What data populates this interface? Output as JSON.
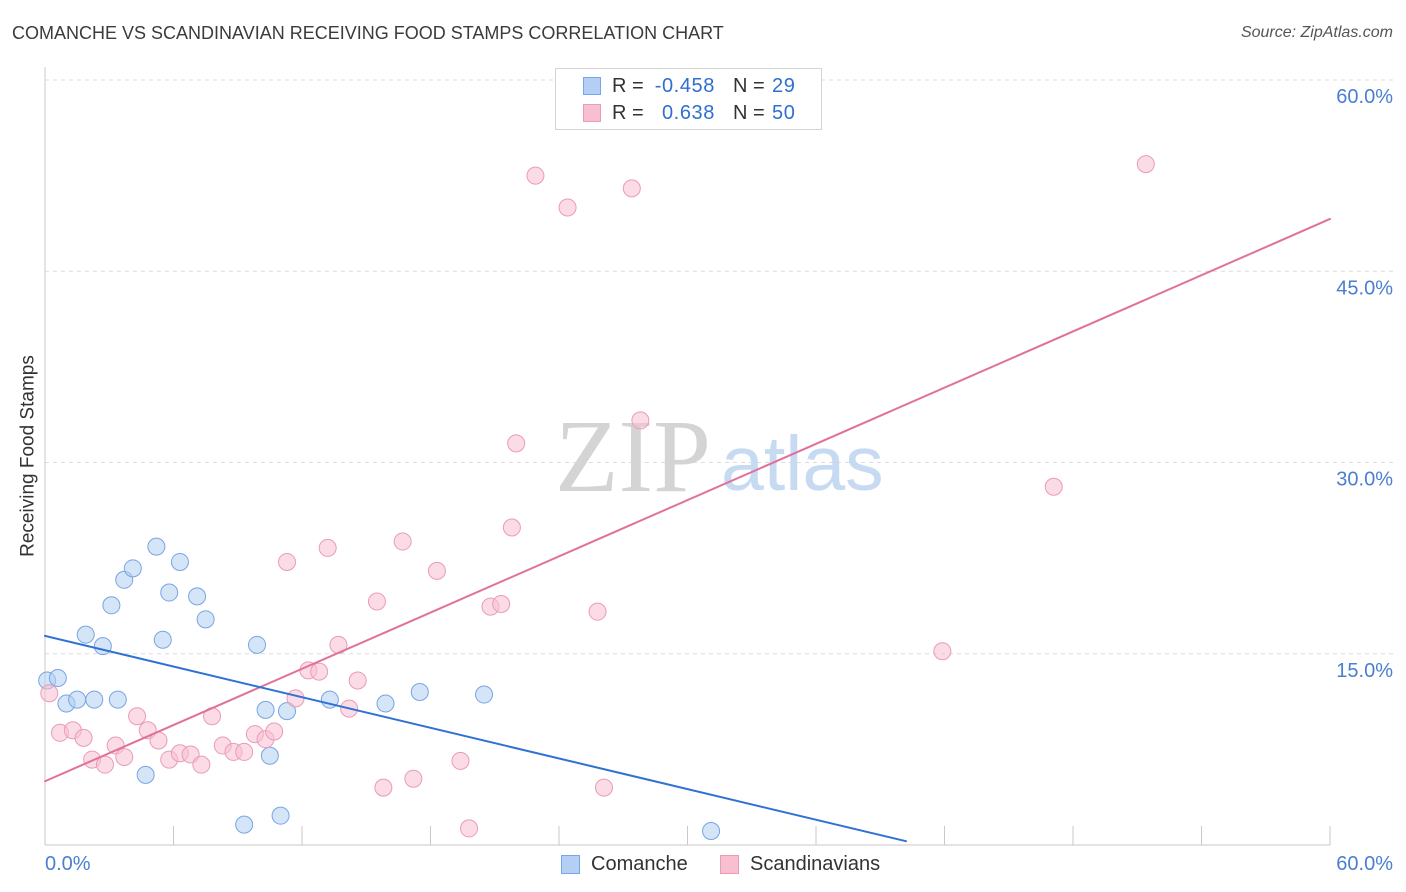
{
  "source": "Source: ZipAtlas.com",
  "watermark": {
    "part1": "ZIP",
    "part2": "atlas"
  },
  "stats_legend": {
    "rows": [
      {
        "r_label": "R =",
        "n_label": "N ="
      },
      {
        "r_label": "R =",
        "n_label": "N ="
      }
    ]
  },
  "chart_data": {
    "type": "scatter",
    "title": "COMANCHE VS SCANDINAVIAN RECEIVING FOOD STAMPS CORRELATION CHART",
    "xlabel": "",
    "ylabel": "Receiving Food Stamps",
    "xlim": [
      0,
      60
    ],
    "ylim": [
      0,
      61
    ],
    "grid": true,
    "x_axis": {
      "ticks": [
        0,
        6,
        12,
        18,
        24,
        30,
        36,
        42,
        48,
        54,
        60
      ],
      "tick_labels": [
        {
          "value": 0,
          "label": "0.0%"
        },
        {
          "value": 60,
          "label": "60.0%"
        }
      ]
    },
    "y_axis": {
      "ticks": [
        {
          "value": 60,
          "label": "60.0%"
        },
        {
          "value": 45,
          "label": "45.0%"
        },
        {
          "value": 30,
          "label": "30.0%"
        },
        {
          "value": 15,
          "label": "15.0%"
        }
      ]
    },
    "series": [
      {
        "name": "Comanche",
        "r": "-0.458",
        "n": "29",
        "fill": "#b3cff3",
        "stroke": "#78a5e3",
        "line_color": "#2f72d4",
        "trend": [
          [
            0,
            16.4
          ],
          [
            40.2,
            0.3
          ]
        ],
        "points": [
          [
            0.1,
            12.9
          ],
          [
            0.6,
            13.1
          ],
          [
            1.0,
            11.1
          ],
          [
            1.5,
            11.4
          ],
          [
            1.9,
            16.5
          ],
          [
            2.3,
            11.4
          ],
          [
            2.7,
            15.6
          ],
          [
            3.1,
            18.8
          ],
          [
            3.4,
            11.4
          ],
          [
            3.7,
            20.8
          ],
          [
            4.1,
            21.7
          ],
          [
            4.7,
            5.5
          ],
          [
            5.2,
            23.4
          ],
          [
            5.5,
            16.1
          ],
          [
            5.8,
            19.8
          ],
          [
            6.3,
            22.2
          ],
          [
            7.1,
            19.5
          ],
          [
            7.5,
            17.7
          ],
          [
            9.3,
            1.6
          ],
          [
            9.9,
            15.7
          ],
          [
            10.3,
            10.6
          ],
          [
            10.5,
            7.0
          ],
          [
            11.0,
            2.3
          ],
          [
            11.3,
            10.5
          ],
          [
            13.3,
            11.4
          ],
          [
            15.9,
            11.1
          ],
          [
            17.5,
            12.0
          ],
          [
            20.5,
            11.8
          ],
          [
            31.1,
            1.1
          ]
        ]
      },
      {
        "name": "Scandinavians",
        "r": "0.638",
        "n": "50",
        "fill": "#f8bfd1",
        "stroke": "#eb9bb5",
        "line_color": "#e0719a",
        "trend": [
          [
            0,
            5.0
          ],
          [
            60,
            49.1
          ]
        ],
        "points": [
          [
            0.2,
            11.9
          ],
          [
            0.7,
            8.8
          ],
          [
            1.3,
            9.0
          ],
          [
            1.8,
            8.4
          ],
          [
            2.2,
            6.7
          ],
          [
            2.8,
            6.3
          ],
          [
            3.3,
            7.8
          ],
          [
            3.7,
            6.9
          ],
          [
            4.3,
            10.1
          ],
          [
            4.8,
            9.0
          ],
          [
            5.3,
            8.2
          ],
          [
            5.8,
            6.7
          ],
          [
            6.3,
            7.2
          ],
          [
            6.8,
            7.1
          ],
          [
            7.3,
            6.3
          ],
          [
            7.8,
            10.1
          ],
          [
            8.3,
            7.8
          ],
          [
            8.8,
            7.3
          ],
          [
            9.3,
            7.3
          ],
          [
            9.8,
            8.7
          ],
          [
            10.3,
            8.3
          ],
          [
            10.7,
            8.9
          ],
          [
            11.3,
            22.2
          ],
          [
            11.7,
            11.5
          ],
          [
            12.3,
            13.7
          ],
          [
            12.8,
            13.6
          ],
          [
            13.2,
            23.3
          ],
          [
            13.7,
            15.7
          ],
          [
            14.2,
            10.7
          ],
          [
            14.6,
            12.9
          ],
          [
            15.5,
            19.1
          ],
          [
            15.8,
            4.5
          ],
          [
            16.7,
            23.8
          ],
          [
            17.2,
            5.2
          ],
          [
            18.3,
            21.5
          ],
          [
            19.4,
            6.6
          ],
          [
            19.8,
            1.3
          ],
          [
            20.8,
            18.7
          ],
          [
            21.3,
            18.9
          ],
          [
            21.8,
            24.9
          ],
          [
            22.0,
            31.5
          ],
          [
            22.9,
            52.5
          ],
          [
            24.4,
            50.0
          ],
          [
            25.8,
            18.3
          ],
          [
            26.1,
            4.5
          ],
          [
            27.4,
            51.5
          ],
          [
            27.8,
            33.3
          ],
          [
            41.9,
            15.2
          ],
          [
            47.1,
            28.1
          ],
          [
            51.4,
            53.4
          ]
        ]
      }
    ]
  }
}
